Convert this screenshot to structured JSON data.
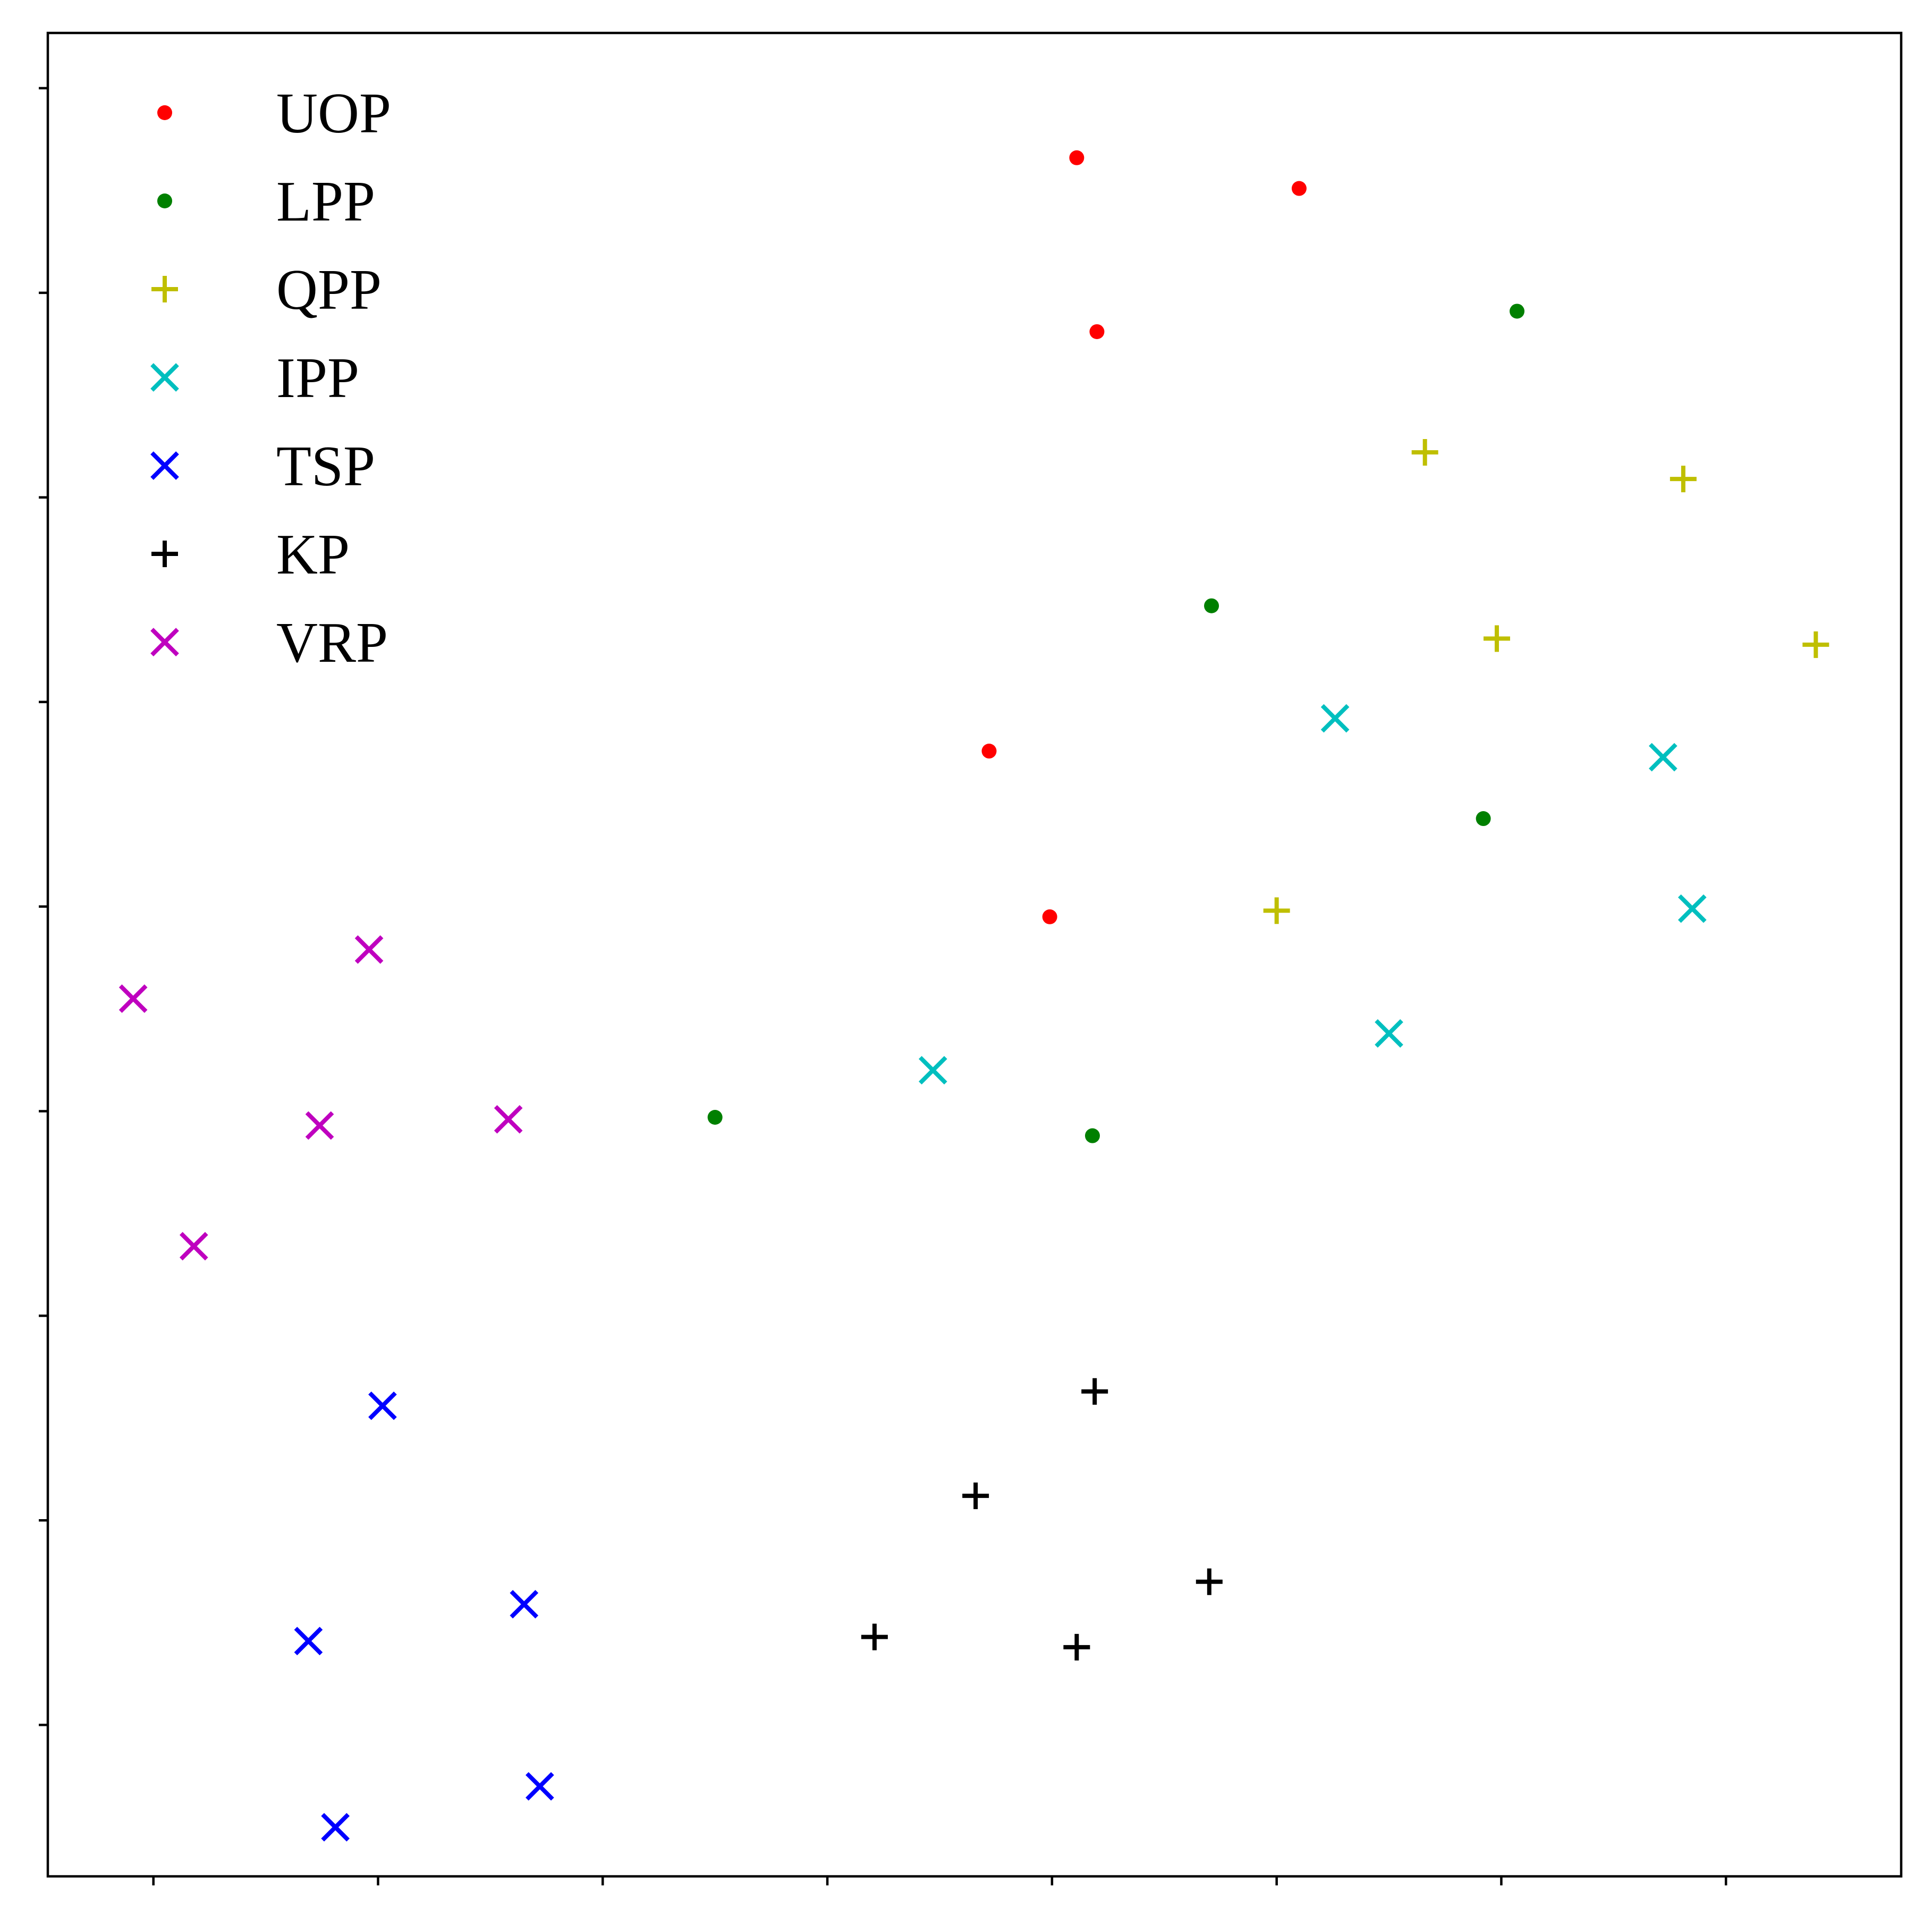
{
  "chart_data": {
    "type": "scatter",
    "title": "",
    "xlabel": "",
    "ylabel": "",
    "xlim": [
      -0.47,
      7.78
    ],
    "ylim": [
      -0.74,
      8.27
    ],
    "xticks": [
      0,
      1,
      2,
      3,
      4,
      5,
      6,
      7
    ],
    "yticks": [
      0,
      1,
      2,
      3,
      4,
      5,
      6,
      7,
      8
    ],
    "tick_labels_shown": false,
    "grid": false,
    "legend_position": "upper left",
    "series": [
      {
        "name": "UOP",
        "marker": "dot",
        "color": "#ff0000",
        "points": [
          [
            4.11,
            7.66
          ],
          [
            5.1,
            7.51
          ],
          [
            4.2,
            6.81
          ],
          [
            3.72,
            4.76
          ],
          [
            3.99,
            3.95
          ]
        ]
      },
      {
        "name": "LPP",
        "marker": "dot",
        "color": "#008000",
        "points": [
          [
            6.07,
            6.91
          ],
          [
            4.71,
            5.47
          ],
          [
            5.92,
            4.43
          ],
          [
            2.5,
            2.97
          ],
          [
            4.18,
            2.88
          ]
        ]
      },
      {
        "name": "QPP",
        "marker": "plus",
        "color": "#bfbf00",
        "points": [
          [
            5.66,
            6.22
          ],
          [
            6.81,
            6.09
          ],
          [
            5.98,
            5.31
          ],
          [
            7.4,
            5.28
          ],
          [
            5.0,
            3.98
          ]
        ]
      },
      {
        "name": "IPP",
        "marker": "x",
        "color": "#00bfbf",
        "points": [
          [
            5.26,
            4.92
          ],
          [
            6.72,
            4.73
          ],
          [
            6.85,
            3.99
          ],
          [
            5.5,
            3.38
          ],
          [
            3.47,
            3.2
          ]
        ]
      },
      {
        "name": "TSP",
        "marker": "x",
        "color": "#0000ff",
        "points": [
          [
            1.02,
            1.56
          ],
          [
            0.69,
            0.41
          ],
          [
            1.65,
            0.59
          ],
          [
            0.81,
            -0.5
          ],
          [
            1.72,
            -0.3
          ]
        ]
      },
      {
        "name": "KP",
        "marker": "plus",
        "color": "#000000",
        "points": [
          [
            4.19,
            1.63
          ],
          [
            3.66,
            1.12
          ],
          [
            4.7,
            0.7
          ],
          [
            3.21,
            0.43
          ],
          [
            4.11,
            0.38
          ]
        ]
      },
      {
        "name": "VRP",
        "marker": "x",
        "color": "#bf00bf",
        "points": [
          [
            -0.09,
            3.55
          ],
          [
            0.96,
            3.79
          ],
          [
            0.74,
            2.93
          ],
          [
            1.58,
            2.96
          ],
          [
            0.18,
            2.34
          ]
        ]
      }
    ]
  }
}
